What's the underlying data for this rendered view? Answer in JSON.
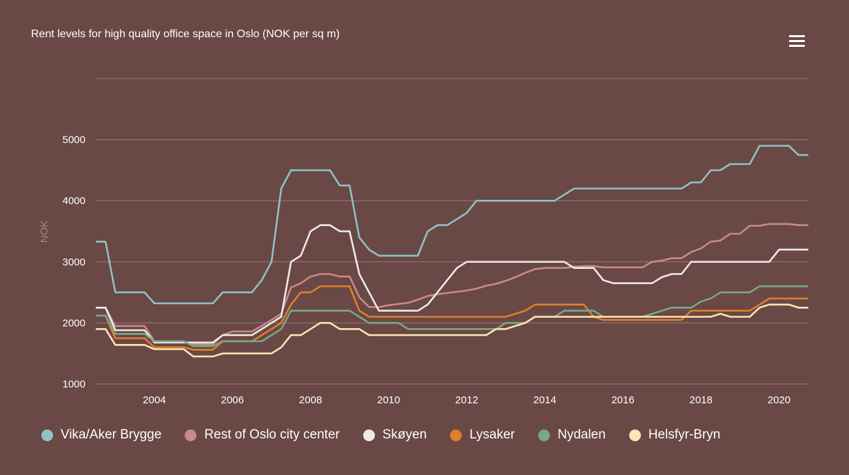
{
  "title": "Rent levels for high quality office space in Oslo (NOK per sq m)",
  "menu_icon": "hamburger-menu-icon",
  "chart_data": {
    "type": "line",
    "title": "Rent levels for high quality office space in Oslo (NOK per sq m)",
    "xlabel": "",
    "ylabel": "NOK",
    "xlim": [
      2002.5,
      2020.75
    ],
    "ylim": [
      1000,
      6000
    ],
    "yticks": [
      1000,
      2000,
      3000,
      4000,
      5000
    ],
    "xticks": [
      2004,
      2006,
      2008,
      2010,
      2012,
      2014,
      2016,
      2018,
      2020
    ],
    "grid": true,
    "legend": "bottom",
    "x": [
      2002.5,
      2002.75,
      2003,
      2003.25,
      2003.5,
      2003.75,
      2004,
      2004.25,
      2004.5,
      2004.75,
      2005,
      2005.25,
      2005.5,
      2005.75,
      2006,
      2006.25,
      2006.5,
      2006.75,
      2007,
      2007.25,
      2007.5,
      2007.75,
      2008,
      2008.25,
      2008.5,
      2008.75,
      2009,
      2009.25,
      2009.5,
      2009.75,
      2010,
      2010.25,
      2010.5,
      2010.75,
      2011,
      2011.25,
      2011.5,
      2011.75,
      2012,
      2012.25,
      2012.5,
      2012.75,
      2013,
      2013.25,
      2013.5,
      2013.75,
      2014,
      2014.25,
      2014.5,
      2014.75,
      2015,
      2015.25,
      2015.5,
      2015.75,
      2016,
      2016.25,
      2016.5,
      2016.75,
      2017,
      2017.25,
      2017.5,
      2017.75,
      2018,
      2018.25,
      2018.5,
      2018.75,
      2019,
      2019.25,
      2019.5,
      2019.75,
      2020,
      2020.25,
      2020.5,
      2020.75
    ],
    "series": [
      {
        "name": "Vika/Aker Brygge",
        "color": "#8fc3c6",
        "values": [
          3330,
          3330,
          2500,
          2500,
          2500,
          2500,
          2320,
          2320,
          2320,
          2320,
          2320,
          2320,
          2320,
          2500,
          2500,
          2500,
          2500,
          2700,
          3000,
          4200,
          4500,
          4500,
          4500,
          4500,
          4500,
          4250,
          4250,
          3400,
          3200,
          3100,
          3100,
          3100,
          3100,
          3100,
          3500,
          3600,
          3600,
          3700,
          3800,
          4000,
          4000,
          4000,
          4000,
          4000,
          4000,
          4000,
          4000,
          4000,
          4100,
          4200,
          4200,
          4200,
          4200,
          4200,
          4200,
          4200,
          4200,
          4200,
          4200,
          4200,
          4200,
          4300,
          4300,
          4500,
          4500,
          4600,
          4600,
          4600,
          4900,
          4900,
          4900,
          4900,
          4750,
          4750
        ]
      },
      {
        "name": "Rest of Oslo city center",
        "color": "#c98a87",
        "values": [
          2250,
          2250,
          1950,
          1950,
          1950,
          1950,
          1700,
          1700,
          1700,
          1700,
          1650,
          1650,
          1650,
          1800,
          1860,
          1860,
          1860,
          1950,
          2050,
          2150,
          2580,
          2650,
          2760,
          2800,
          2800,
          2760,
          2760,
          2420,
          2260,
          2260,
          2290,
          2310,
          2330,
          2380,
          2440,
          2470,
          2490,
          2510,
          2530,
          2560,
          2610,
          2640,
          2690,
          2750,
          2820,
          2880,
          2900,
          2900,
          2900,
          2920,
          2930,
          2930,
          2910,
          2910,
          2910,
          2910,
          2910,
          3000,
          3020,
          3060,
          3060,
          3160,
          3220,
          3330,
          3350,
          3460,
          3460,
          3590,
          3590,
          3620,
          3620,
          3620,
          3600,
          3600
        ]
      },
      {
        "name": "Skøyen",
        "color": "#eeeaea",
        "values": [
          2250,
          2250,
          1880,
          1880,
          1880,
          1880,
          1680,
          1680,
          1680,
          1680,
          1680,
          1680,
          1680,
          1800,
          1800,
          1800,
          1800,
          1900,
          2000,
          2100,
          3000,
          3100,
          3500,
          3600,
          3600,
          3500,
          3500,
          2800,
          2500,
          2200,
          2200,
          2200,
          2200,
          2200,
          2300,
          2500,
          2700,
          2900,
          3000,
          3000,
          3000,
          3000,
          3000,
          3000,
          3000,
          3000,
          3000,
          3000,
          3000,
          2900,
          2900,
          2900,
          2700,
          2650,
          2650,
          2650,
          2650,
          2650,
          2750,
          2800,
          2800,
          3000,
          3000,
          3000,
          3000,
          3000,
          3000,
          3000,
          3000,
          3000,
          3200,
          3200,
          3200,
          3200
        ]
      },
      {
        "name": "Lysaker",
        "color": "#e07f2c",
        "values": [
          2120,
          2120,
          1750,
          1750,
          1750,
          1750,
          1600,
          1600,
          1600,
          1600,
          1560,
          1560,
          1560,
          1700,
          1700,
          1700,
          1700,
          1800,
          1900,
          2000,
          2300,
          2500,
          2500,
          2600,
          2600,
          2600,
          2600,
          2200,
          2100,
          2100,
          2100,
          2100,
          2100,
          2100,
          2100,
          2100,
          2100,
          2100,
          2100,
          2100,
          2100,
          2100,
          2100,
          2150,
          2200,
          2300,
          2300,
          2300,
          2300,
          2300,
          2300,
          2100,
          2050,
          2050,
          2050,
          2050,
          2050,
          2050,
          2050,
          2050,
          2050,
          2200,
          2200,
          2200,
          2200,
          2200,
          2200,
          2200,
          2300,
          2400,
          2400,
          2400,
          2400,
          2400
        ]
      },
      {
        "name": "Nydalen",
        "color": "#78a885",
        "values": [
          2120,
          2120,
          1820,
          1820,
          1820,
          1820,
          1700,
          1700,
          1700,
          1700,
          1620,
          1620,
          1620,
          1700,
          1700,
          1700,
          1700,
          1700,
          1800,
          1900,
          2200,
          2200,
          2200,
          2200,
          2200,
          2200,
          2200,
          2100,
          2000,
          2000,
          2000,
          2000,
          1900,
          1900,
          1900,
          1900,
          1900,
          1900,
          1900,
          1900,
          1900,
          1900,
          2000,
          2000,
          2000,
          2100,
          2100,
          2100,
          2200,
          2200,
          2200,
          2200,
          2100,
          2100,
          2100,
          2100,
          2100,
          2150,
          2200,
          2250,
          2250,
          2250,
          2350,
          2400,
          2500,
          2500,
          2500,
          2500,
          2600,
          2600,
          2600,
          2600,
          2600,
          2600
        ]
      },
      {
        "name": "Helsfyr-Bryn",
        "color": "#fbe6b4",
        "values": [
          1900,
          1900,
          1640,
          1640,
          1640,
          1640,
          1570,
          1570,
          1570,
          1570,
          1450,
          1450,
          1450,
          1500,
          1500,
          1500,
          1500,
          1500,
          1500,
          1600,
          1800,
          1800,
          1900,
          2000,
          2000,
          1900,
          1900,
          1900,
          1800,
          1800,
          1800,
          1800,
          1800,
          1800,
          1800,
          1800,
          1800,
          1800,
          1800,
          1800,
          1800,
          1900,
          1900,
          1950,
          2000,
          2100,
          2100,
          2100,
          2100,
          2100,
          2100,
          2100,
          2100,
          2100,
          2100,
          2100,
          2100,
          2100,
          2100,
          2100,
          2100,
          2100,
          2100,
          2100,
          2150,
          2100,
          2100,
          2100,
          2250,
          2300,
          2300,
          2300,
          2250,
          2250
        ]
      }
    ]
  }
}
